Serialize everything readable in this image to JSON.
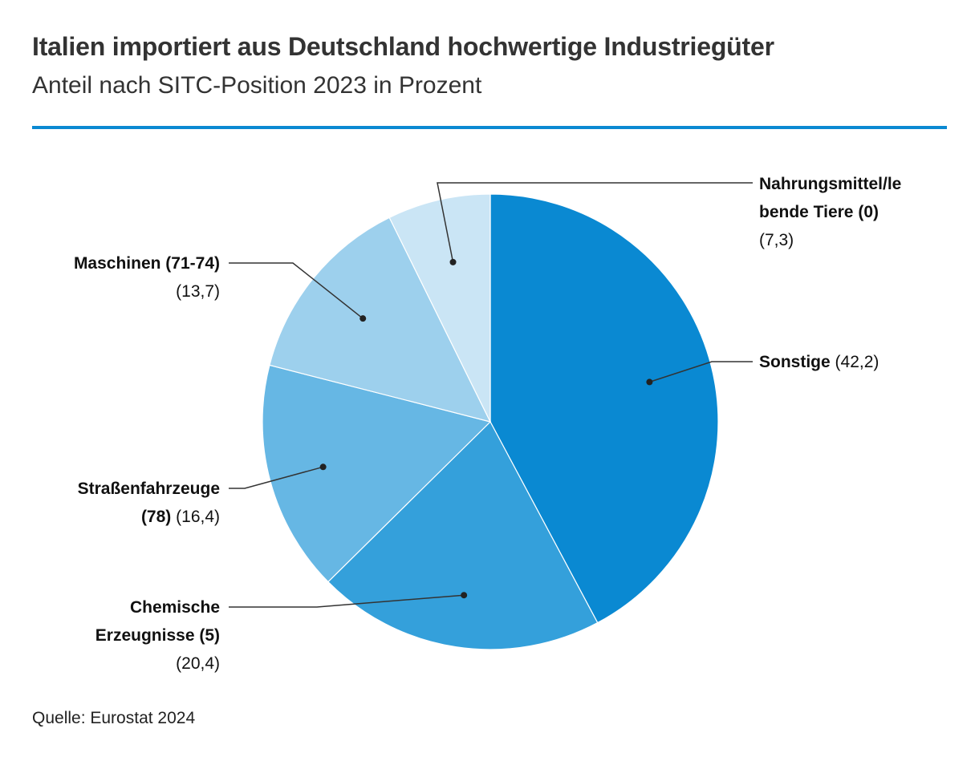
{
  "title": "Italien importiert aus Deutschland hochwertige Industriegüter",
  "subtitle": "Anteil nach SITC-Position 2023 in Prozent",
  "source": "Quelle: Eurostat 2024",
  "colors": {
    "rule": "#0a89d2"
  },
  "chart_data": {
    "type": "pie",
    "title": "Italien importiert aus Deutschland hochwertige Industriegüter",
    "subtitle": "Anteil nach SITC-Position 2023 in Prozent",
    "start": "12 o'clock, clockwise",
    "slices": [
      {
        "label": "Sonstige",
        "value": 42.2,
        "value_label": "(42,2)",
        "color": "#0a89d2"
      },
      {
        "label": "Chemische Erzeugnisse (5)",
        "value": 20.4,
        "value_label": "(20,4)",
        "color": "#34a0db"
      },
      {
        "label": "Straßenfahrzeuge (78)",
        "value": 16.4,
        "value_label": "(16,4)",
        "color": "#66b7e4"
      },
      {
        "label": "Maschinen (71-74)",
        "value": 13.7,
        "value_label": "(13,7)",
        "color": "#9dd0ed"
      },
      {
        "label": "Nahrungsmittel/lebende Tiere (0)",
        "value": 7.3,
        "value_label": "(7,3)",
        "color": "#cae5f5"
      }
    ]
  }
}
